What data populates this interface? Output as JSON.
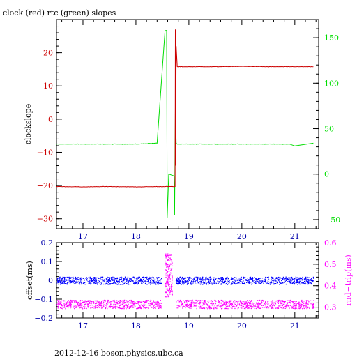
{
  "title": "clock (red) rtc (green) slopes",
  "footer": "2012-12-16 boson.physics.ubc.ca",
  "colors": {
    "clock": "#cc0000",
    "rtc": "#00dd00",
    "offset": "#0000ff",
    "rndtrip": "#ff00ff",
    "axis_x": "#0000aa",
    "axis_black": "#000000"
  },
  "chart_data": [
    {
      "type": "line",
      "xlim": [
        16.5,
        21.45
      ],
      "x_ticks": [
        17,
        18,
        19,
        20,
        21
      ],
      "x_tick_labels": [
        "17",
        "18",
        "19",
        "20",
        "21"
      ],
      "left_axis": {
        "label": "clockslope",
        "ylim": [
          -33,
          30
        ],
        "ticks": [
          20,
          10,
          0,
          -10,
          -20,
          -30
        ],
        "tick_labels": [
          "20",
          "10",
          "0",
          "−10",
          "−20",
          "−30"
        ]
      },
      "right_axis": {
        "label": "",
        "ylim": [
          -60,
          170
        ],
        "ticks": [
          150,
          100,
          50,
          0,
          -50
        ],
        "tick_labels": [
          "150",
          "100",
          "50",
          "0",
          "−50"
        ]
      },
      "series": [
        {
          "name": "clock (red)",
          "axis": "left",
          "x": [
            16.5,
            17.0,
            17.5,
            18.0,
            18.5,
            18.74,
            18.745,
            18.75,
            18.76,
            18.78,
            19.0,
            19.5,
            20.0,
            20.5,
            21.0,
            21.35
          ],
          "y": [
            -20.3,
            -20.4,
            -20.3,
            -20.4,
            -20.3,
            -20.3,
            27.0,
            -14.0,
            22.0,
            15.8,
            15.8,
            15.8,
            15.9,
            15.8,
            15.8,
            15.8
          ]
        },
        {
          "name": "rtc (green)",
          "axis": "right",
          "x": [
            16.5,
            17.0,
            17.5,
            18.0,
            18.4,
            18.55,
            18.58,
            18.59,
            18.62,
            18.72,
            18.73,
            18.745,
            18.76,
            18.78,
            19.0,
            19.5,
            20.0,
            20.5,
            20.9,
            21.0,
            21.35
          ],
          "y": [
            33,
            33,
            33,
            33,
            34,
            158,
            158,
            -48,
            0,
            -2,
            -45,
            70,
            34,
            33,
            33,
            33,
            33,
            33,
            33,
            31,
            34
          ]
        }
      ]
    },
    {
      "type": "scatter",
      "xlim": [
        16.5,
        21.45
      ],
      "x_ticks": [
        17,
        18,
        19,
        20,
        21
      ],
      "x_tick_labels": [
        "17",
        "18",
        "19",
        "20",
        "21"
      ],
      "left_axis": {
        "label": "offset(ms)",
        "ylim": [
          -0.2,
          0.2
        ],
        "ticks": [
          0.2,
          0.1,
          0,
          -0.1,
          -0.2
        ],
        "tick_labels": [
          "0.2",
          "0.1",
          "0",
          "−0.1",
          "−0.2"
        ]
      },
      "right_axis": {
        "label": "rnd−trip(ms)",
        "ylim": [
          0.25,
          0.6
        ],
        "ticks": [
          0.6,
          0.5,
          0.4,
          0.3
        ],
        "tick_labels": [
          "0.6",
          "0.5",
          "0.4",
          "0.3"
        ]
      },
      "series": [
        {
          "name": "offset",
          "axis": "left",
          "band": [
            16.5,
            21.35
          ],
          "center": 0.0,
          "spread": 0.02,
          "gaps": [
            [
              18.48,
              18.75
            ],
            [
              20.5,
              20.52
            ]
          ]
        },
        {
          "name": "rnd-trip",
          "axis": "right",
          "band": [
            16.5,
            21.35
          ],
          "center": 0.315,
          "spread": 0.02,
          "gaps": [
            [
              18.48,
              18.75
            ],
            [
              20.5,
              20.52
            ]
          ],
          "burst": {
            "x": [
              18.55,
              18.68
            ],
            "center": 0.45,
            "spread": 0.1
          }
        }
      ]
    }
  ]
}
